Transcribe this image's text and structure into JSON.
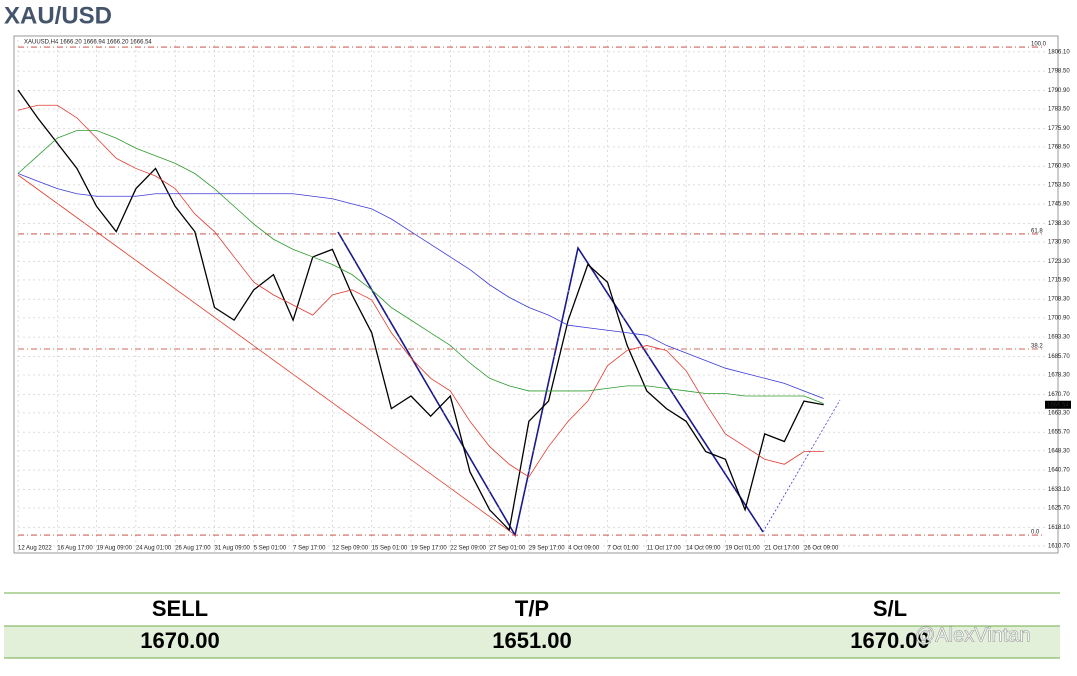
{
  "chart_data": {
    "type": "line",
    "title": "XAU/USD",
    "header": "XAUUSD,H4  1666.20 1666.94 1666.20 1666.54",
    "price_label": "1666.54",
    "price": 1666.54,
    "categories": [
      "12 Aug 2022",
      null,
      "16 Aug 17:00",
      null,
      "19 Aug 09:00",
      null,
      "24 Aug 01:00",
      null,
      "26 Aug 17:00",
      null,
      "31 Aug 09:00",
      null,
      "5 Sep 01:00",
      null,
      "7 Sep 17:00",
      null,
      "12 Sep 09:00",
      null,
      "15 Sep 01:00",
      null,
      "19 Sep 17:00",
      null,
      "22 Sep 09:00",
      null,
      "27 Sep 01:00",
      null,
      "29 Sep 17:00",
      null,
      "4 Oct 09:00",
      null,
      "7 Oct 01:00",
      null,
      "11 Oct 17:00",
      null,
      "14 Oct 09:00",
      null,
      "19 Oct 01:00",
      null,
      "21 Oct 17:00",
      null,
      "26 Oct 09:00",
      null
    ],
    "series": [
      {
        "color": "#000000",
        "values": [
          1791,
          1780,
          1770,
          1760,
          1745,
          1735,
          1752,
          1760,
          1745,
          1735,
          1705,
          1700,
          1712,
          1718,
          1700,
          1725,
          1728,
          1710,
          1695,
          1665,
          1670,
          1662,
          1670,
          1640,
          1625,
          1617,
          1660,
          1668,
          1700,
          1722,
          1715,
          1690,
          1672,
          1665,
          1660,
          1648,
          1645,
          1625,
          1655,
          1652,
          1668,
          1666.54
        ]
      },
      {
        "color": "#e03c31",
        "values": [
          1783,
          1785,
          1785,
          1780,
          1772,
          1764,
          1760,
          1757,
          1752,
          1742,
          1735,
          1725,
          1715,
          1710,
          1706,
          1702,
          1710,
          1712,
          1708,
          1695,
          1685,
          1677,
          1672,
          1660,
          1650,
          1643,
          1638,
          1650,
          1660,
          1668,
          1682,
          1688,
          1690,
          1688,
          1680,
          1667,
          1655,
          1650,
          1645,
          1643,
          1648,
          1648
        ]
      },
      {
        "color": "#2e9a2e",
        "values": [
          1758,
          1765,
          1772,
          1775,
          1775,
          1772,
          1768,
          1765,
          1762,
          1758,
          1752,
          1745,
          1738,
          1732,
          1728,
          1725,
          1722,
          1718,
          1712,
          1705,
          1700,
          1695,
          1690,
          1683,
          1677,
          1674,
          1672,
          1672,
          1672,
          1672,
          1673,
          1674,
          1674,
          1673,
          1672,
          1671,
          1671,
          1670,
          1670,
          1670,
          1670,
          1667
        ]
      },
      {
        "color": "#3b3bd6",
        "values": [
          1758,
          1755,
          1752,
          1750,
          1749,
          1749,
          1749,
          1750,
          1750,
          1750,
          1750,
          1750,
          1750,
          1750,
          1750,
          1749,
          1748,
          1746,
          1744,
          1740,
          1735,
          1730,
          1725,
          1720,
          1714,
          1709,
          1705,
          1702,
          1698,
          1697,
          1696,
          1695,
          1694,
          1690,
          1687,
          1684,
          1681,
          1679,
          1677,
          1675,
          1672,
          1669
        ]
      }
    ],
    "levels": [
      {
        "value": 1808,
        "label": "100.0"
      },
      {
        "value": 1734.1,
        "label": "61.8"
      },
      {
        "value": 1688.6,
        "label": "38.2"
      },
      {
        "value": 1615,
        "label": "0.0"
      }
    ],
    "ylim": [
      1608.3,
      1810.8
    ],
    "yticks": [
      {
        "value": 1610.7,
        "label": "1610.70"
      },
      {
        "value": 1618.1,
        "label": "1618.10"
      },
      {
        "value": 1625.7,
        "label": "1625.70"
      },
      {
        "value": 1633.1,
        "label": "1633.10"
      },
      {
        "value": 1640.7,
        "label": "1640.70"
      },
      {
        "value": 1648.3,
        "label": "1648.30"
      },
      {
        "value": 1655.7,
        "label": "1655.70"
      },
      {
        "value": 1663.3,
        "label": "1663.30"
      },
      {
        "value": 1670.7,
        "label": "1670.70"
      },
      {
        "value": 1678.3,
        "label": "1678.30"
      },
      {
        "value": 1685.7,
        "label": "1685.70"
      },
      {
        "value": 1693.3,
        "label": "1693.30"
      },
      {
        "value": 1700.9,
        "label": "1700.90"
      },
      {
        "value": 1708.3,
        "label": "1708.30"
      },
      {
        "value": 1715.9,
        "label": "1715.90"
      },
      {
        "value": 1723.3,
        "label": "1723.30"
      },
      {
        "value": 1730.9,
        "label": "1730.90"
      },
      {
        "value": 1738.3,
        "label": "1738.30"
      },
      {
        "value": 1745.9,
        "label": "1745.90"
      },
      {
        "value": 1753.5,
        "label": "1753.50"
      },
      {
        "value": 1760.9,
        "label": "1760.90"
      },
      {
        "value": 1768.5,
        "label": "1768.50"
      },
      {
        "value": 1775.9,
        "label": "1775.90"
      },
      {
        "value": 1783.5,
        "label": "1783.50"
      },
      {
        "value": 1790.9,
        "label": "1790.90"
      },
      {
        "value": 1798.5,
        "label": "1798.50"
      },
      {
        "value": 1806.1,
        "label": "1806.10"
      }
    ],
    "grid": true,
    "table": {
      "header": [
        "SELL",
        "T/P",
        "S/L"
      ],
      "row": [
        "1670.00",
        "1651.00",
        "1670.00"
      ]
    },
    "watermark": "@AlexVintan"
  }
}
